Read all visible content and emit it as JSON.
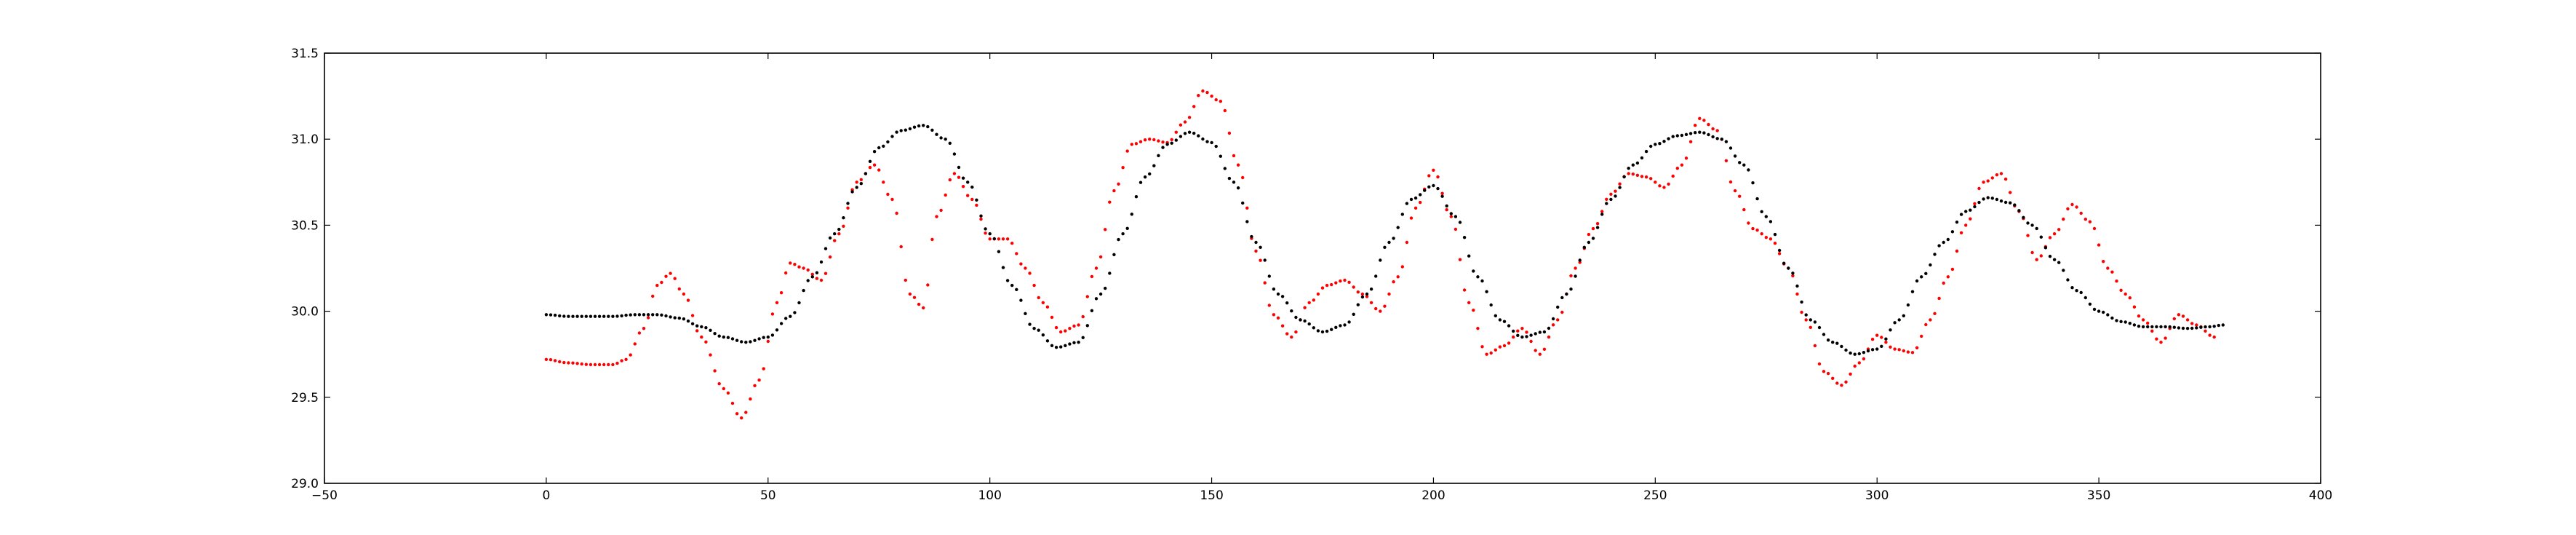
{
  "chart_data": {
    "type": "scatter",
    "title": "",
    "xlabel": "",
    "ylabel": "",
    "xlim": [
      -50,
      400
    ],
    "ylim": [
      29.0,
      31.5
    ],
    "grid": false,
    "x_ticks": [
      -50,
      0,
      50,
      100,
      150,
      200,
      250,
      300,
      350,
      400
    ],
    "x_tick_labels": [
      "−50",
      "0",
      "50",
      "100",
      "150",
      "200",
      "250",
      "300",
      "350",
      "400"
    ],
    "y_ticks": [
      29.0,
      29.5,
      30.0,
      30.5,
      31.0,
      31.5
    ],
    "y_tick_labels": [
      "29.0",
      "29.5",
      "30.0",
      "30.5",
      "31.0",
      "31.5"
    ],
    "series": [
      {
        "color": "#ff0000",
        "x": [
          0,
          5,
          10,
          15,
          18,
          22,
          25,
          28,
          31,
          35,
          40,
          44,
          48,
          52,
          55,
          58,
          62,
          66,
          70,
          74,
          78,
          82,
          85,
          88,
          92,
          96,
          100,
          104,
          108,
          112,
          116,
          120,
          124,
          128,
          132,
          136,
          140,
          144,
          148,
          152,
          156,
          160,
          164,
          168,
          172,
          176,
          180,
          184,
          188,
          192,
          196,
          200,
          204,
          208,
          212,
          216,
          220,
          224,
          228,
          232,
          236,
          240,
          244,
          248,
          252,
          256,
          260,
          264,
          268,
          272,
          276,
          280,
          284,
          288,
          292,
          296,
          300,
          304,
          308,
          312,
          316,
          320,
          324,
          328,
          332,
          336,
          340,
          344,
          348,
          352,
          356,
          360,
          364,
          368,
          372,
          376
        ],
        "y": [
          29.72,
          29.7,
          29.69,
          29.69,
          29.72,
          29.9,
          30.15,
          30.22,
          30.1,
          29.85,
          29.55,
          29.38,
          29.6,
          30.05,
          30.28,
          30.25,
          30.18,
          30.45,
          30.75,
          30.85,
          30.65,
          30.1,
          30.02,
          30.55,
          30.8,
          30.65,
          30.42,
          30.42,
          30.25,
          30.05,
          29.88,
          29.92,
          30.25,
          30.7,
          30.97,
          31.0,
          30.98,
          31.1,
          31.28,
          31.22,
          30.85,
          30.35,
          29.98,
          29.85,
          30.05,
          30.15,
          30.18,
          30.1,
          30.0,
          30.2,
          30.6,
          30.82,
          30.55,
          30.05,
          29.75,
          29.8,
          29.9,
          29.75,
          29.95,
          30.25,
          30.48,
          30.68,
          30.8,
          30.78,
          30.72,
          30.85,
          31.12,
          31.05,
          30.7,
          30.48,
          30.42,
          30.25,
          29.95,
          29.65,
          29.57,
          29.7,
          29.86,
          29.78,
          29.76,
          29.95,
          30.2,
          30.5,
          30.75,
          30.8,
          30.58,
          30.3,
          30.45,
          30.62,
          30.52,
          30.25,
          30.1,
          29.95,
          29.82,
          29.98,
          29.92,
          29.85
        ]
      },
      {
        "color": "#000000",
        "x": [
          0,
          5,
          10,
          15,
          20,
          25,
          30,
          35,
          40,
          45,
          50,
          55,
          60,
          65,
          70,
          75,
          80,
          85,
          90,
          95,
          100,
          105,
          110,
          115,
          120,
          125,
          130,
          135,
          140,
          145,
          150,
          155,
          160,
          165,
          170,
          175,
          180,
          185,
          190,
          195,
          200,
          205,
          210,
          215,
          220,
          225,
          230,
          235,
          240,
          245,
          250,
          255,
          260,
          265,
          270,
          275,
          280,
          285,
          290,
          295,
          300,
          305,
          310,
          315,
          320,
          325,
          330,
          335,
          340,
          345,
          350,
          355,
          360,
          365,
          370,
          375,
          378
        ],
        "y": [
          29.98,
          29.97,
          29.97,
          29.97,
          29.98,
          29.98,
          29.96,
          29.91,
          29.85,
          29.82,
          29.85,
          29.97,
          30.2,
          30.45,
          30.72,
          30.95,
          31.05,
          31.08,
          31.0,
          30.75,
          30.45,
          30.15,
          29.9,
          29.79,
          29.82,
          30.1,
          30.45,
          30.78,
          30.97,
          31.04,
          30.98,
          30.75,
          30.4,
          30.1,
          29.95,
          29.88,
          29.92,
          30.1,
          30.4,
          30.65,
          30.73,
          30.55,
          30.2,
          29.95,
          29.85,
          29.88,
          30.1,
          30.4,
          30.65,
          30.85,
          30.97,
          31.02,
          31.04,
          31.0,
          30.85,
          30.55,
          30.25,
          29.95,
          29.82,
          29.75,
          29.78,
          29.95,
          30.2,
          30.4,
          30.58,
          30.66,
          30.63,
          30.5,
          30.3,
          30.12,
          30.0,
          29.94,
          29.91,
          29.91,
          29.9,
          29.91,
          29.92
        ]
      }
    ]
  }
}
